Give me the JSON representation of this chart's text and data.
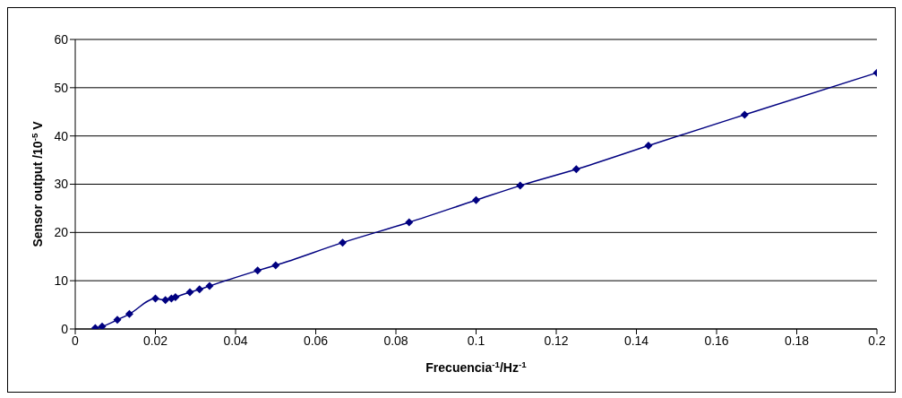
{
  "chart_data": {
    "type": "line",
    "xlabel": "Frecuencia$^{-1}$/Hz$^{-1}$",
    "ylabel": "Sensor output /10$^{-5}$ V",
    "x": [
      0.005,
      0.0067,
      0.0105,
      0.0135,
      0.02,
      0.0225,
      0.024,
      0.025,
      0.0286,
      0.031,
      0.0335,
      0.0455,
      0.05,
      0.0667,
      0.0833,
      0.1,
      0.111,
      0.125,
      0.143,
      0.167,
      0.2
    ],
    "series": [
      {
        "color": "#000080",
        "values": [
          0.2,
          0.5,
          1.9,
          3.1,
          6.3,
          6.0,
          6.3,
          6.6,
          7.6,
          8.2,
          8.9,
          12.1,
          13.2,
          17.9,
          22.1,
          26.7,
          29.7,
          33.1,
          38.0,
          44.4,
          53.1
        ]
      }
    ],
    "xlim": [
      0,
      0.2
    ],
    "xticks": [
      0,
      0.02,
      0.04,
      0.06,
      0.08,
      0.1,
      0.12,
      0.14,
      0.16,
      0.18,
      0.2
    ],
    "ylim": [
      0,
      60
    ],
    "yticks": [
      0,
      10,
      20,
      30,
      40,
      50,
      60
    ],
    "grid": "y",
    "marker": "diamond",
    "line_style": "solid"
  }
}
